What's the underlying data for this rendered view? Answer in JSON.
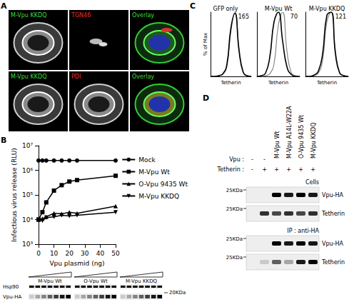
{
  "figure": {
    "panel_A": {
      "letter": "A",
      "rows": [
        [
          {
            "text": "M-Vpu KKDQ",
            "color": "#3ddc3d"
          },
          {
            "text": "TGN46",
            "color": "#e03030"
          },
          {
            "text": "Overlay",
            "color": "#3ddc3d"
          }
        ],
        [
          {
            "text": "M-Vpu KKDQ",
            "color": "#3ddc3d"
          },
          {
            "text": "PDI",
            "color": "#e03030"
          },
          {
            "text": "Overlay",
            "color": "#3ddc3d"
          }
        ]
      ]
    },
    "panel_B": {
      "letter": "B",
      "blot": {
        "groups": [
          "M-Vpu Wt",
          "O-Vpu Wt",
          "M-Vpu KKDQ"
        ],
        "marker": "20KDa",
        "rows": [
          {
            "label": "Hsp90",
            "bands": [
              1,
              1,
              1,
              1,
              1,
              1,
              1
            ]
          },
          {
            "label": "Vpu-HA",
            "bands": [
              0.15,
              0.3,
              0.45,
              0.6,
              0.75,
              0.9,
              1
            ]
          }
        ]
      }
    },
    "panel_C": {
      "letter": "C"
    },
    "panel_D": {
      "letter": "D",
      "row_heads": [
        "Vpu :",
        "Tetherin :"
      ],
      "lanes": [
        {
          "vpu": "-",
          "tetherin": "-"
        },
        {
          "vpu": "-",
          "tetherin": "+"
        },
        {
          "vpu": "M-Vpu Wt",
          "tetherin": "+"
        },
        {
          "vpu": "M-Vpu A14L-W22A",
          "tetherin": "+"
        },
        {
          "vpu": "O-Vpu 9435 Wt",
          "tetherin": "+"
        },
        {
          "vpu": "M-Vpu KKDQ",
          "tetherin": "+"
        }
      ],
      "sections": [
        {
          "title": "Cells",
          "blots": [
            {
              "label": "Vpu-HA",
              "marker": "25KDa",
              "bands": [
                0,
                0,
                1,
                0.9,
                1,
                0.9
              ]
            },
            {
              "label": "Tetherin",
              "marker": "25KDa",
              "bands": [
                0,
                0.8,
                0.7,
                0.8,
                0.7,
                0.8
              ]
            }
          ]
        },
        {
          "title": "IP : anti-HA",
          "blots": [
            {
              "label": "Vpu-HA",
              "marker": "25KDa",
              "bands": [
                0,
                0,
                1,
                0.9,
                1,
                0.9
              ]
            },
            {
              "label": "Tetherin",
              "marker": "25KDa",
              "bands": [
                0,
                0.15,
                0.6,
                0.3,
                0.9,
                1
              ]
            }
          ]
        }
      ]
    }
  },
  "chart_data": [
    {
      "type": "line",
      "x": [
        0,
        2.5,
        5,
        10,
        15,
        20,
        25,
        50
      ],
      "x_label": "Vpu plasmid (ng)",
      "y_label": "Infectious virus release (RLU)",
      "xlim": [
        0,
        50
      ],
      "xticks": [
        0,
        10,
        20,
        30,
        40,
        50
      ],
      "log": "y",
      "ylim": [
        1000,
        10000000
      ],
      "yticks": [
        {
          "value": 1000,
          "label": "10³"
        },
        {
          "value": 10000,
          "label": "10⁴"
        },
        {
          "value": 100000,
          "label": "10⁵"
        },
        {
          "value": 1000000,
          "label": "10⁶"
        },
        {
          "value": 10000000,
          "label": "10⁷"
        }
      ],
      "grid": false,
      "legend": "right",
      "series": [
        {
          "name": "Mock",
          "color": "#000000",
          "marker": "circle",
          "values": [
            2500000,
            2500000,
            2500000,
            2500000,
            2500000,
            2500000,
            2500000,
            2500000
          ]
        },
        {
          "name": "M-Vpu Wt",
          "color": "#000000",
          "marker": "square",
          "values": [
            10000,
            20000,
            50000,
            150000,
            250000,
            350000,
            400000,
            600000
          ]
        },
        {
          "name": "O-Vpu 9435 Wt",
          "color": "#000000",
          "marker": "triangle",
          "values": [
            10000,
            11000,
            13000,
            18000,
            17000,
            20000,
            18000,
            35000
          ]
        },
        {
          "name": "M-Vpu KKDQ",
          "color": "#000000",
          "marker": "triangle-down",
          "values": [
            10000,
            9000,
            12000,
            13000,
            15000,
            14000,
            15000,
            20000
          ]
        }
      ]
    },
    {
      "type": "line",
      "title": "GFP only",
      "annotation": "165",
      "x_label": "Tetherin",
      "y_label": "% of Max",
      "x": [
        0,
        1,
        2,
        3,
        4,
        5,
        6,
        7,
        8,
        9,
        10
      ],
      "xlim": [
        0,
        10
      ],
      "ylim": [
        0,
        100
      ],
      "tick_labels": false,
      "grid": false,
      "series": [
        {
          "color": "#888888",
          "values": [
            0,
            0,
            1,
            3,
            15,
            70,
            100,
            45,
            8,
            1,
            0
          ]
        },
        {
          "color": "#000000",
          "values": [
            0,
            0,
            1,
            4,
            18,
            75,
            98,
            40,
            7,
            1,
            0
          ]
        }
      ]
    },
    {
      "type": "line",
      "title": "M-Vpu Wt",
      "annotation": "70",
      "x_label": "Tetherin",
      "x": [
        0,
        1,
        2,
        3,
        4,
        5,
        6,
        7,
        8,
        9,
        10
      ],
      "xlim": [
        0,
        10
      ],
      "ylim": [
        0,
        100
      ],
      "tick_labels": false,
      "grid": false,
      "series": [
        {
          "color": "#888888",
          "values": [
            0,
            0,
            1,
            4,
            20,
            80,
            100,
            40,
            6,
            1,
            0
          ]
        },
        {
          "color": "#000000",
          "values": [
            0,
            1,
            5,
            30,
            85,
            100,
            55,
            15,
            3,
            0,
            0
          ]
        }
      ]
    },
    {
      "type": "line",
      "title": "M-Vpu KKDQ",
      "annotation": "121",
      "x_label": "Tetherin",
      "x": [
        0,
        1,
        2,
        3,
        4,
        5,
        6,
        7,
        8,
        9,
        10
      ],
      "xlim": [
        0,
        10
      ],
      "ylim": [
        0,
        100
      ],
      "tick_labels": false,
      "grid": false,
      "series": [
        {
          "color": "#888888",
          "values": [
            0,
            0,
            1,
            5,
            25,
            85,
            100,
            40,
            6,
            1,
            0
          ]
        },
        {
          "color": "#000000",
          "values": [
            0,
            0,
            2,
            8,
            35,
            95,
            100,
            35,
            5,
            1,
            0
          ]
        }
      ]
    }
  ]
}
